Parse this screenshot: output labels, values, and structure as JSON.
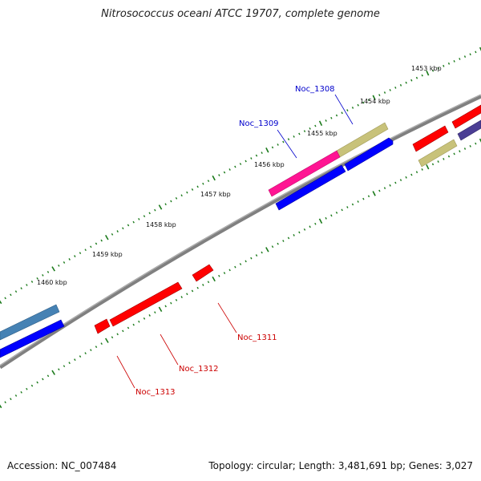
{
  "title": "Nitrosococcus oceani ATCC 19707, complete genome",
  "footer": {
    "accession": "Accession: NC_007484",
    "summary": "Topology: circular; Length: 3,481,691 bp; Genes: 3,027"
  },
  "colors": {
    "backbone": "#808080",
    "tick": "#1a7a1a",
    "red": "#ff0000",
    "blue": "#0000ff",
    "pink": "#ff1493",
    "khaki": "#c8c27a",
    "steel": "#4682b4",
    "slate": "#4b3e94",
    "label_blue": "#0000cc",
    "label_red": "#cc0000"
  },
  "kbp_labels": [
    "1453 kbp",
    "1454 kbp",
    "1455 kbp",
    "1456 kbp",
    "1457 kbp",
    "1458 kbp",
    "1459 kbp",
    "1460 kbp"
  ],
  "gene_labels": [
    {
      "id": "Noc_1308",
      "text": "Noc_1308",
      "color": "label_blue"
    },
    {
      "id": "Noc_1309",
      "text": "Noc_1309",
      "color": "label_blue"
    },
    {
      "id": "Noc_1311",
      "text": "Noc_1311",
      "color": "label_red"
    },
    {
      "id": "Noc_1312",
      "text": "Noc_1312",
      "color": "label_red"
    },
    {
      "id": "Noc_1313",
      "text": "Noc_1313",
      "color": "label_red"
    }
  ],
  "features": [
    {
      "name": "khaki-block-upper",
      "color": "khaki"
    },
    {
      "name": "pink-block",
      "color": "pink"
    },
    {
      "name": "blue-block-upper",
      "color": "blue"
    },
    {
      "name": "blue-block-lower",
      "color": "blue"
    },
    {
      "name": "red-small-top-right",
      "color": "red"
    },
    {
      "name": "red-top-right-edge",
      "color": "red"
    },
    {
      "name": "slate-top-right-edge",
      "color": "slate"
    },
    {
      "name": "khaki-block-right",
      "color": "khaki"
    },
    {
      "name": "red-mid-small",
      "color": "red"
    },
    {
      "name": "red-mid-long",
      "color": "red"
    },
    {
      "name": "red-lower-small",
      "color": "red"
    },
    {
      "name": "steel-left",
      "color": "steel"
    },
    {
      "name": "blue-left",
      "color": "blue"
    }
  ]
}
